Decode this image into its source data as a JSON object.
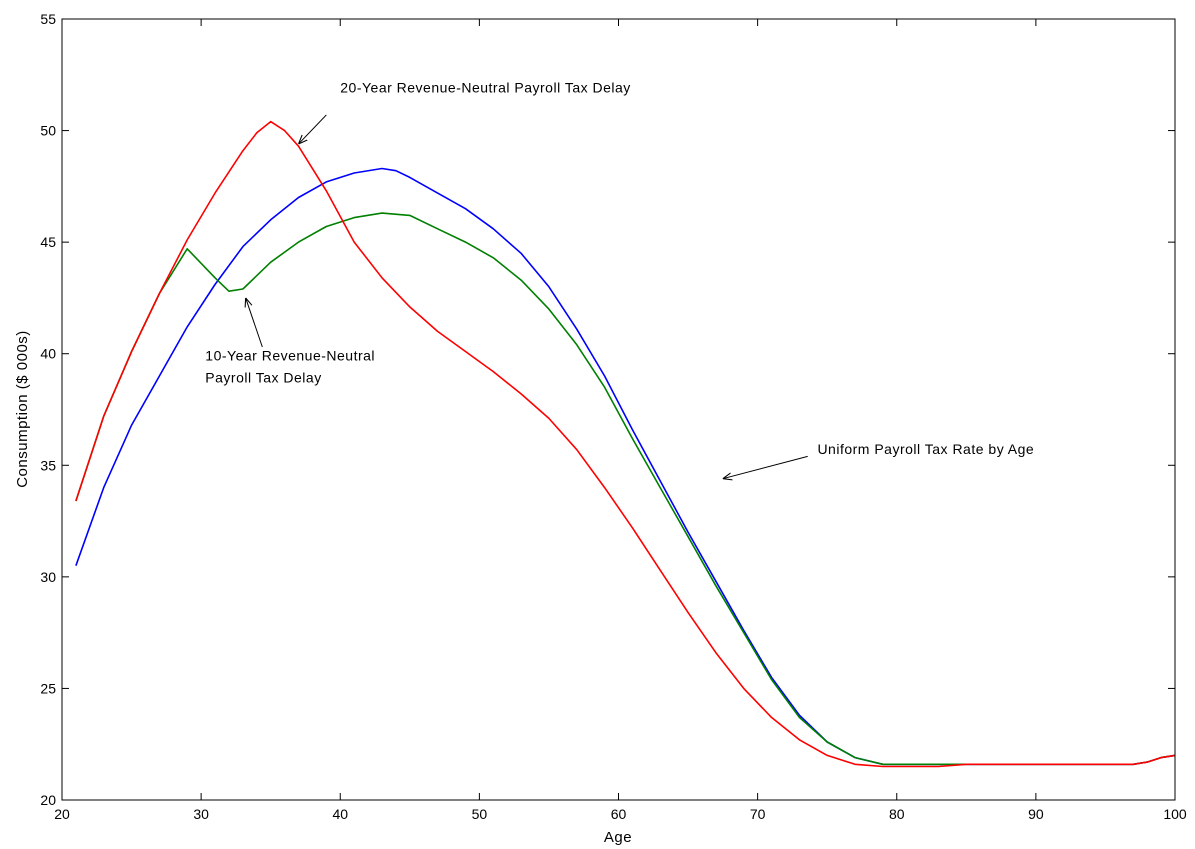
{
  "chart_data": {
    "type": "line",
    "title": "",
    "xlabel": "Age",
    "ylabel": "Consumption ($ 000s)",
    "xlim": [
      20,
      100
    ],
    "ylim": [
      20,
      55
    ],
    "xticks": [
      20,
      30,
      40,
      50,
      60,
      70,
      80,
      90,
      100
    ],
    "yticks": [
      20,
      25,
      30,
      35,
      40,
      45,
      50,
      55
    ],
    "grid": false,
    "legend": "none",
    "series": [
      {
        "color": "#0000ff",
        "x": [
          21,
          23,
          25,
          27,
          29,
          31,
          33,
          35,
          37,
          39,
          41,
          43,
          44,
          45,
          47,
          49,
          51,
          53,
          55,
          57,
          59,
          61,
          63,
          65,
          67,
          69,
          71,
          73,
          75,
          77,
          79,
          81,
          83,
          85,
          87,
          89,
          91,
          93,
          95,
          97,
          98,
          99,
          100
        ],
        "y": [
          30.5,
          34.0,
          36.8,
          39.0,
          41.2,
          43.1,
          44.8,
          46.0,
          47.0,
          47.7,
          48.1,
          48.3,
          48.2,
          47.9,
          47.2,
          46.5,
          45.6,
          44.5,
          43.0,
          41.1,
          39.0,
          36.6,
          34.3,
          32.0,
          29.8,
          27.6,
          25.5,
          23.8,
          22.6,
          21.9,
          21.6,
          21.6,
          21.6,
          21.6,
          21.6,
          21.6,
          21.6,
          21.6,
          21.6,
          21.6,
          21.7,
          21.9,
          22.0
        ]
      },
      {
        "color": "#008000",
        "x": [
          21,
          23,
          25,
          27,
          29,
          31,
          32,
          33,
          35,
          37,
          39,
          41,
          43,
          45,
          47,
          49,
          51,
          53,
          55,
          57,
          59,
          61,
          63,
          65,
          67,
          69,
          71,
          73,
          75,
          77,
          79,
          81,
          83,
          85,
          87,
          89,
          91,
          93,
          95,
          97,
          98,
          99,
          100
        ],
        "y": [
          33.4,
          37.2,
          40.1,
          42.7,
          44.7,
          43.4,
          42.8,
          42.9,
          44.1,
          45.0,
          45.7,
          46.1,
          46.3,
          46.2,
          45.6,
          45.0,
          44.3,
          43.3,
          42.0,
          40.4,
          38.5,
          36.2,
          34.0,
          31.8,
          29.6,
          27.5,
          25.4,
          23.7,
          22.6,
          21.9,
          21.6,
          21.6,
          21.6,
          21.6,
          21.6,
          21.6,
          21.6,
          21.6,
          21.6,
          21.6,
          21.7,
          21.9,
          22.0
        ]
      },
      {
        "color": "#ff0000",
        "x": [
          21,
          23,
          25,
          27,
          29,
          31,
          33,
          34,
          35,
          36,
          37,
          39,
          41,
          43,
          45,
          47,
          49,
          51,
          53,
          55,
          57,
          59,
          61,
          63,
          65,
          67,
          69,
          71,
          73,
          75,
          77,
          79,
          81,
          82,
          83,
          85,
          87,
          89,
          91,
          93,
          95,
          97,
          98,
          99,
          100
        ],
        "y": [
          33.4,
          37.2,
          40.1,
          42.7,
          45.1,
          47.2,
          49.1,
          49.9,
          50.4,
          50.0,
          49.3,
          47.3,
          45.0,
          43.4,
          42.1,
          41.0,
          40.1,
          39.2,
          38.2,
          37.1,
          35.7,
          34.0,
          32.2,
          30.3,
          28.4,
          26.6,
          25.0,
          23.7,
          22.7,
          22.0,
          21.6,
          21.5,
          21.5,
          21.5,
          21.5,
          21.6,
          21.6,
          21.6,
          21.6,
          21.6,
          21.6,
          21.6,
          21.7,
          21.9,
          22.0
        ]
      }
    ],
    "annotations": [
      {
        "lines": [
          "20-Year Revenue-Neutral Payroll Tax Delay"
        ],
        "text_at": [
          40.0,
          51.7
        ],
        "arrow_from": [
          39.0,
          50.7
        ],
        "arrow_to": [
          37.0,
          49.4
        ]
      },
      {
        "lines": [
          "10-Year Revenue-Neutral",
          "Payroll Tax Delay"
        ],
        "text_at": [
          30.3,
          39.7
        ],
        "arrow_from": [
          34.4,
          40.3
        ],
        "arrow_to": [
          33.2,
          42.5
        ]
      },
      {
        "lines": [
          "Uniform Payroll Tax Rate by Age"
        ],
        "text_at": [
          74.3,
          35.5
        ],
        "arrow_from": [
          73.6,
          35.4
        ],
        "arrow_to": [
          67.5,
          34.4
        ]
      }
    ]
  }
}
